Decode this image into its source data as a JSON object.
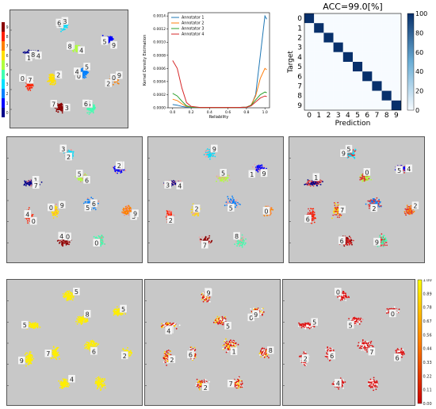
{
  "top_left_colorbar": {
    "ticks": [
      "0",
      "1",
      "2",
      "3",
      "4",
      "5",
      "6",
      "7",
      "8",
      "9"
    ],
    "colors": [
      "#00008b",
      "#0000ff",
      "#0080ff",
      "#00e0ff",
      "#40ffb0",
      "#b0ff40",
      "#ffe000",
      "#ff8000",
      "#ff2000",
      "#8b0000"
    ]
  },
  "chart_data": [
    {
      "type": "line",
      "xlabel": "Reliability",
      "ylabel": "Kernel Density Estimation",
      "xlim": [
        -0.05,
        1.05
      ],
      "ylim": [
        0,
        0.00145
      ],
      "x_ticks": [
        "0.0",
        "0.2",
        "0.4",
        "0.6",
        "0.8",
        "1.0"
      ],
      "y_ticks": [
        "0.0000",
        "0.0002",
        "0.0004",
        "0.0006",
        "0.0008",
        "0.0010",
        "0.0012",
        "0.0014"
      ],
      "legend_position": "top-left",
      "x": [
        0.0,
        0.05,
        0.1,
        0.15,
        0.2,
        0.3,
        0.5,
        0.7,
        0.8,
        0.85,
        0.9,
        0.95,
        1.0,
        1.02
      ],
      "series": [
        {
          "name": "Annotator 1",
          "color": "#1f77b4",
          "values": [
            5e-05,
            4e-05,
            2e-05,
            1e-05,
            5e-06,
            5e-06,
            5e-06,
            5e-06,
            1e-05,
            3e-05,
            0.0002,
            0.0008,
            0.0014,
            0.00135
          ]
        },
        {
          "name": "Annotator 2",
          "color": "#ff7f0e",
          "values": [
            0.00013,
            0.00011,
            6e-05,
            2e-05,
            8e-06,
            5e-06,
            5e-06,
            5e-06,
            1e-05,
            4e-05,
            0.00018,
            0.00045,
            0.0006,
            0.00058
          ]
        },
        {
          "name": "Annotator 3",
          "color": "#2ca02c",
          "values": [
            0.00022,
            0.00018,
            0.0001,
            3e-05,
            1e-05,
            5e-06,
            5e-06,
            5e-06,
            1e-05,
            4e-05,
            0.00012,
            0.0002,
            0.00024,
            0.00023
          ]
        },
        {
          "name": "Annotator 4",
          "color": "#d62728",
          "values": [
            0.00072,
            0.0006,
            0.0003,
            8e-05,
            2e-05,
            5e-06,
            5e-06,
            5e-06,
            1e-05,
            3e-05,
            9e-05,
            0.00015,
            0.00018,
            0.00017
          ]
        }
      ]
    },
    {
      "type": "heatmap",
      "title": "ACC=99.0[%]",
      "xlabel": "Prediction",
      "ylabel": "Target",
      "x_ticks": [
        "0",
        "1",
        "2",
        "3",
        "4",
        "5",
        "6",
        "7",
        "8",
        "9"
      ],
      "y_ticks": [
        "0",
        "1",
        "2",
        "3",
        "4",
        "5",
        "6",
        "7",
        "8",
        "9"
      ],
      "colorbar_ticks": [
        "0",
        "20",
        "40",
        "60",
        "80",
        "100"
      ],
      "diagonal_values": [
        99,
        99,
        99,
        99,
        99,
        99,
        99,
        99,
        99,
        99
      ]
    }
  ],
  "bottom_colorbar": {
    "ticks": [
      "1.00",
      "0.89",
      "0.78",
      "0.67",
      "0.56",
      "0.44",
      "0.33",
      "0.22",
      "0.11",
      "0.00"
    ]
  },
  "digits": {
    "top_left": [
      "3",
      "3",
      "1",
      "1",
      "0",
      "0",
      "0",
      "0",
      "3",
      "5",
      "5",
      "5",
      "8",
      "8",
      "5",
      "2",
      "2",
      "7",
      "7",
      "6",
      "6",
      "9",
      "4",
      "4",
      "4",
      "9"
    ],
    "middle_1": [
      "3",
      "2",
      "1",
      "5",
      "5",
      "3",
      "0",
      "0",
      "0",
      "0",
      "2",
      "2",
      "7",
      "6",
      "6",
      "9",
      "9",
      "4",
      "4"
    ],
    "middle_2": [
      "3",
      "1",
      "3",
      "5",
      "5",
      "0",
      "2",
      "2",
      "7",
      "8",
      "9",
      "9",
      "4"
    ],
    "middle_3": [
      "5",
      "5",
      "1",
      "0",
      "2",
      "2",
      "7",
      "6",
      "6",
      "9",
      "9",
      "4"
    ],
    "bottom_1": [
      "5",
      "5",
      "5",
      "8",
      "6",
      "2",
      "7",
      "9",
      "4"
    ],
    "bottom_2": [
      "3",
      "0",
      "5",
      "5",
      "1",
      "8",
      "6",
      "2",
      "2",
      "7",
      "9",
      "9",
      "4"
    ],
    "bottom_3": [
      "0",
      "0",
      "5",
      "5",
      "7",
      "6",
      "6",
      "2",
      "4"
    ]
  }
}
